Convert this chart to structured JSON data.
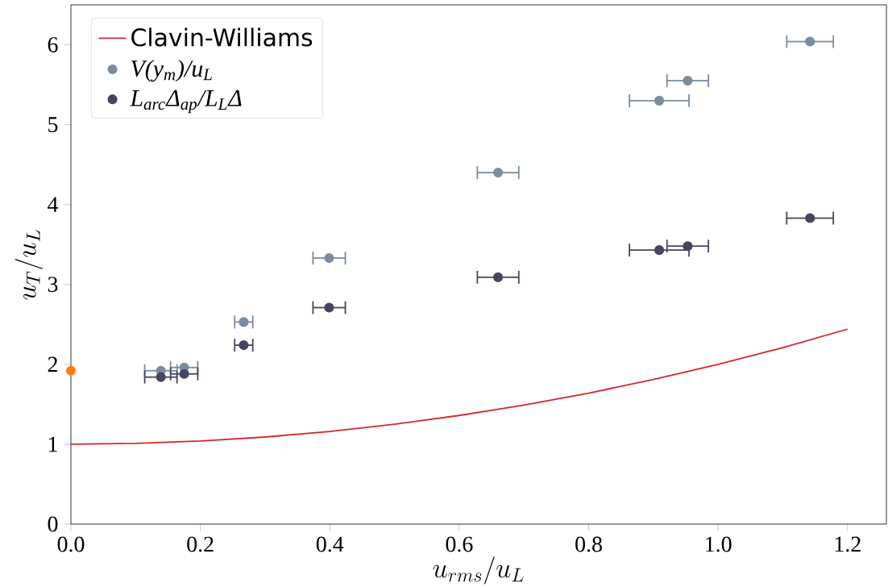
{
  "chart_data": {
    "type": "scatter",
    "xlabel": "u_{rms}/u_L",
    "ylabel": "u_T/u_L",
    "xlim": [
      0,
      1.26
    ],
    "ylim": [
      0,
      6.5
    ],
    "xticks": [
      {
        "value": 0,
        "label": "0.0"
      },
      {
        "value": 0.2,
        "label": "0.2"
      },
      {
        "value": 0.4,
        "label": "0.4"
      },
      {
        "value": 0.6,
        "label": "0.6"
      },
      {
        "value": 0.8,
        "label": "0.8"
      },
      {
        "value": 1.0,
        "label": "1.0"
      },
      {
        "value": 1.2,
        "label": "1.2"
      }
    ],
    "yticks": [
      0,
      1,
      2,
      3,
      4,
      5,
      6
    ],
    "legend": "top left",
    "series": [
      {
        "type": "line",
        "marker": "none",
        "name": "Clavin-Williams",
        "color": "#d62728",
        "x": [
          0,
          0.1,
          0.2,
          0.3,
          0.4,
          0.5,
          0.6,
          0.7,
          0.8,
          0.9,
          1.0,
          1.1,
          1.2
        ],
        "values": [
          1.0,
          1.01,
          1.04,
          1.09,
          1.16,
          1.25,
          1.36,
          1.49,
          1.64,
          1.81,
          2.0,
          2.21,
          2.44
        ]
      },
      {
        "marker": "circle",
        "name": "V(y$_{m}$)/u$_{L}$",
        "color": "#7b8ca0",
        "x": [
          0.139,
          0.175,
          0.267,
          0.399,
          0.66,
          0.909,
          0.953,
          1.142
        ],
        "values": [
          1.92,
          1.96,
          2.53,
          3.33,
          4.4,
          5.3,
          5.55,
          6.04
        ],
        "xerrors": [
          0.025,
          0.021,
          0.014,
          0.025,
          0.032,
          0.046,
          0.032,
          0.036
        ]
      },
      {
        "marker": "circle",
        "name": "L$_{arc}$Δ$_{ap}$/L$_{L}$Δ",
        "color": "#45455f",
        "x": [
          0.139,
          0.175,
          0.267,
          0.399,
          0.66,
          0.909,
          0.953,
          1.142
        ],
        "values": [
          1.84,
          1.88,
          2.24,
          2.71,
          3.09,
          3.43,
          3.48,
          3.83
        ],
        "xerrors": [
          0.025,
          0.021,
          0.014,
          0.025,
          0.032,
          0.046,
          0.032,
          0.036
        ]
      },
      {
        "marker": "circle",
        "color": "#ff7f0e",
        "x": [
          0
        ],
        "values": [
          1.92
        ]
      }
    ]
  }
}
